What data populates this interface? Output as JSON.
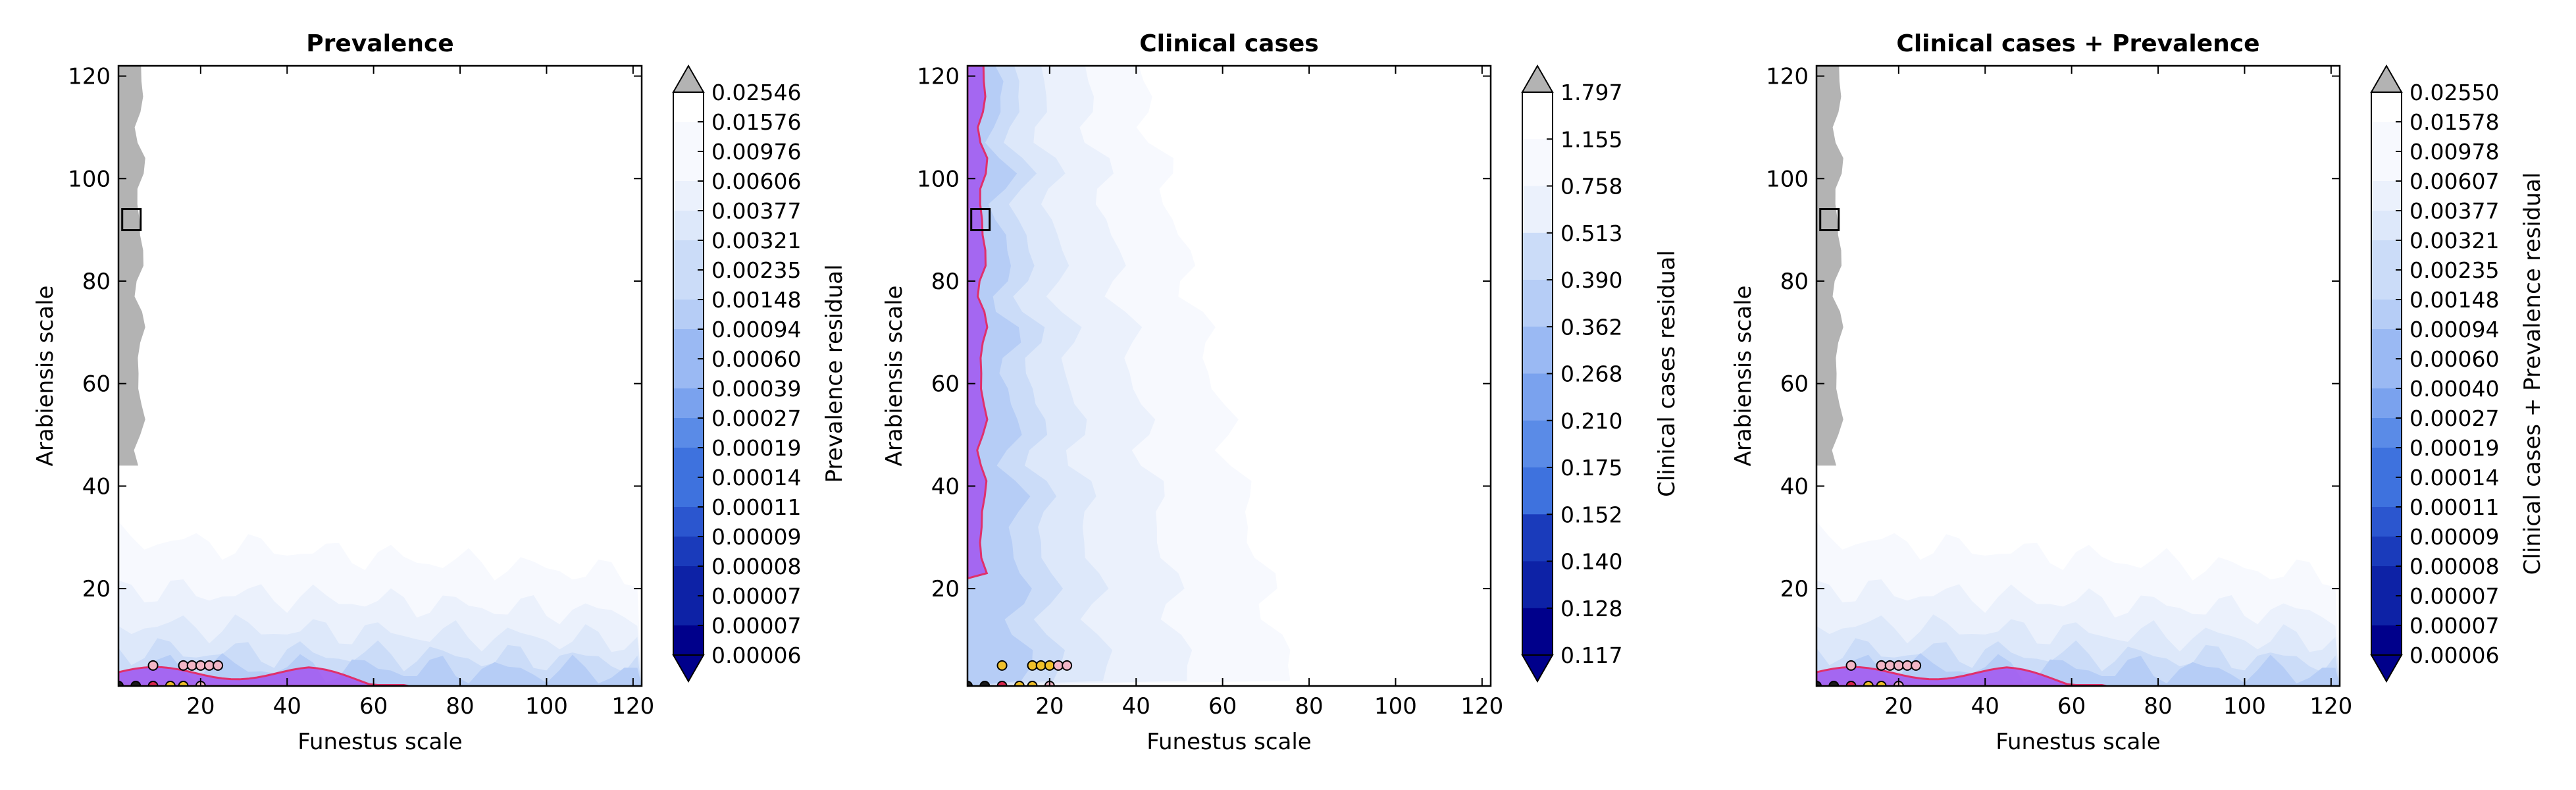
{
  "figure": {
    "background": "#ffffff"
  },
  "colors": {
    "ramp": [
      "#00008b",
      "#0d22a6",
      "#1a3bbb",
      "#2b56cf",
      "#3e72de",
      "#5a8be7",
      "#7aa2ee",
      "#9ab9f3",
      "#b6cdf6",
      "#cbdcf8",
      "#dde8fa",
      "#ebf1fc",
      "#f7f9fe",
      "#ffffff"
    ],
    "over": "#b3b3b3",
    "under": "#00008b",
    "region_fill": "#a155f0",
    "region_edge": "#e0306b",
    "marker_pink": "#f2b6c6",
    "marker_yellow": "#f0c02a",
    "marker_red": "#d8264e",
    "marker_dark": "#1a1a1a"
  },
  "chart_data": [
    {
      "type": "heatmap",
      "title": "Prevalence",
      "xlabel": "Funestus scale",
      "ylabel": "Arabiensis scale",
      "xlim": [
        1,
        122
      ],
      "ylim": [
        1,
        122
      ],
      "xticks": [
        20,
        40,
        60,
        80,
        100,
        120
      ],
      "yticks": [
        20,
        40,
        60,
        80,
        100,
        120
      ],
      "grid": false,
      "colorbar": {
        "label": "Prevalence residual",
        "levels": [
          "0.02546",
          "0.01576",
          "0.00976",
          "0.00606",
          "0.00377",
          "0.00321",
          "0.00235",
          "0.00148",
          "0.00094",
          "0.00060",
          "0.00039",
          "0.00027",
          "0.00019",
          "0.00014",
          "0.00011",
          "0.00009",
          "0.00008",
          "0.00007",
          "0.00007",
          "0.00006"
        ],
        "extend": "both"
      },
      "low_region": "along Arabiensis axis near Funestus 1-6",
      "marker_square": [
        4,
        92
      ],
      "markers": [
        {
          "x": 9,
          "y": 5,
          "color": "pink"
        },
        {
          "x": 16,
          "y": 5,
          "color": "pink"
        },
        {
          "x": 18,
          "y": 5,
          "color": "pink"
        },
        {
          "x": 20,
          "y": 5,
          "color": "pink"
        },
        {
          "x": 22,
          "y": 5,
          "color": "pink"
        },
        {
          "x": 24,
          "y": 5,
          "color": "pink"
        },
        {
          "x": 1,
          "y": 1,
          "color": "dark"
        },
        {
          "x": 5,
          "y": 1,
          "color": "dark"
        },
        {
          "x": 9,
          "y": 1,
          "color": "red"
        },
        {
          "x": 13,
          "y": 1,
          "color": "yellow"
        },
        {
          "x": 16,
          "y": 1,
          "color": "yellow"
        },
        {
          "x": 20,
          "y": 1,
          "color": "pink"
        }
      ]
    },
    {
      "type": "heatmap",
      "title": "Clinical cases",
      "xlabel": "Funestus scale",
      "ylabel": "Arabiensis scale",
      "xlim": [
        1,
        122
      ],
      "ylim": [
        1,
        122
      ],
      "xticks": [
        20,
        40,
        60,
        80,
        100,
        120
      ],
      "yticks": [
        20,
        40,
        60,
        80,
        100,
        120
      ],
      "grid": false,
      "colorbar": {
        "label": "Clinical cases residual",
        "levels": [
          "1.797",
          "1.155",
          "0.758",
          "0.513",
          "0.390",
          "0.362",
          "0.268",
          "0.210",
          "0.175",
          "0.152",
          "0.140",
          "0.128",
          "0.117"
        ],
        "extend": "both"
      },
      "marker_square": [
        4,
        92
      ],
      "markers": [
        {
          "x": 9,
          "y": 5,
          "color": "yellow"
        },
        {
          "x": 16,
          "y": 5,
          "color": "yellow"
        },
        {
          "x": 18,
          "y": 5,
          "color": "yellow"
        },
        {
          "x": 20,
          "y": 5,
          "color": "yellow"
        },
        {
          "x": 22,
          "y": 5,
          "color": "pink"
        },
        {
          "x": 24,
          "y": 5,
          "color": "pink"
        },
        {
          "x": 1,
          "y": 1,
          "color": "dark"
        },
        {
          "x": 5,
          "y": 1,
          "color": "dark"
        },
        {
          "x": 9,
          "y": 1,
          "color": "red"
        },
        {
          "x": 13,
          "y": 1,
          "color": "yellow"
        },
        {
          "x": 16,
          "y": 1,
          "color": "yellow"
        },
        {
          "x": 20,
          "y": 1,
          "color": "pink"
        }
      ]
    },
    {
      "type": "heatmap",
      "title": "Clinical cases + Prevalence",
      "xlabel": "Funestus scale",
      "ylabel": "Arabiensis scale",
      "xlim": [
        1,
        122
      ],
      "ylim": [
        1,
        122
      ],
      "xticks": [
        20,
        40,
        60,
        80,
        100,
        120
      ],
      "yticks": [
        20,
        40,
        60,
        80,
        100,
        120
      ],
      "grid": false,
      "colorbar": {
        "label": "Clinical cases + Prevalence residual",
        "levels": [
          "0.02550",
          "0.01578",
          "0.00978",
          "0.00607",
          "0.00377",
          "0.00321",
          "0.00235",
          "0.00148",
          "0.00094",
          "0.00060",
          "0.00040",
          "0.00027",
          "0.00019",
          "0.00014",
          "0.00011",
          "0.00009",
          "0.00008",
          "0.00007",
          "0.00007",
          "0.00006"
        ],
        "extend": "both"
      },
      "low_region": "along Arabiensis axis near Funestus 1-6",
      "marker_square": [
        4,
        92
      ],
      "markers": [
        {
          "x": 9,
          "y": 5,
          "color": "pink"
        },
        {
          "x": 16,
          "y": 5,
          "color": "pink"
        },
        {
          "x": 18,
          "y": 5,
          "color": "pink"
        },
        {
          "x": 20,
          "y": 5,
          "color": "pink"
        },
        {
          "x": 22,
          "y": 5,
          "color": "pink"
        },
        {
          "x": 24,
          "y": 5,
          "color": "pink"
        },
        {
          "x": 1,
          "y": 1,
          "color": "dark"
        },
        {
          "x": 5,
          "y": 1,
          "color": "dark"
        },
        {
          "x": 9,
          "y": 1,
          "color": "red"
        },
        {
          "x": 13,
          "y": 1,
          "color": "yellow"
        },
        {
          "x": 16,
          "y": 1,
          "color": "yellow"
        },
        {
          "x": 20,
          "y": 1,
          "color": "pink"
        }
      ]
    }
  ]
}
